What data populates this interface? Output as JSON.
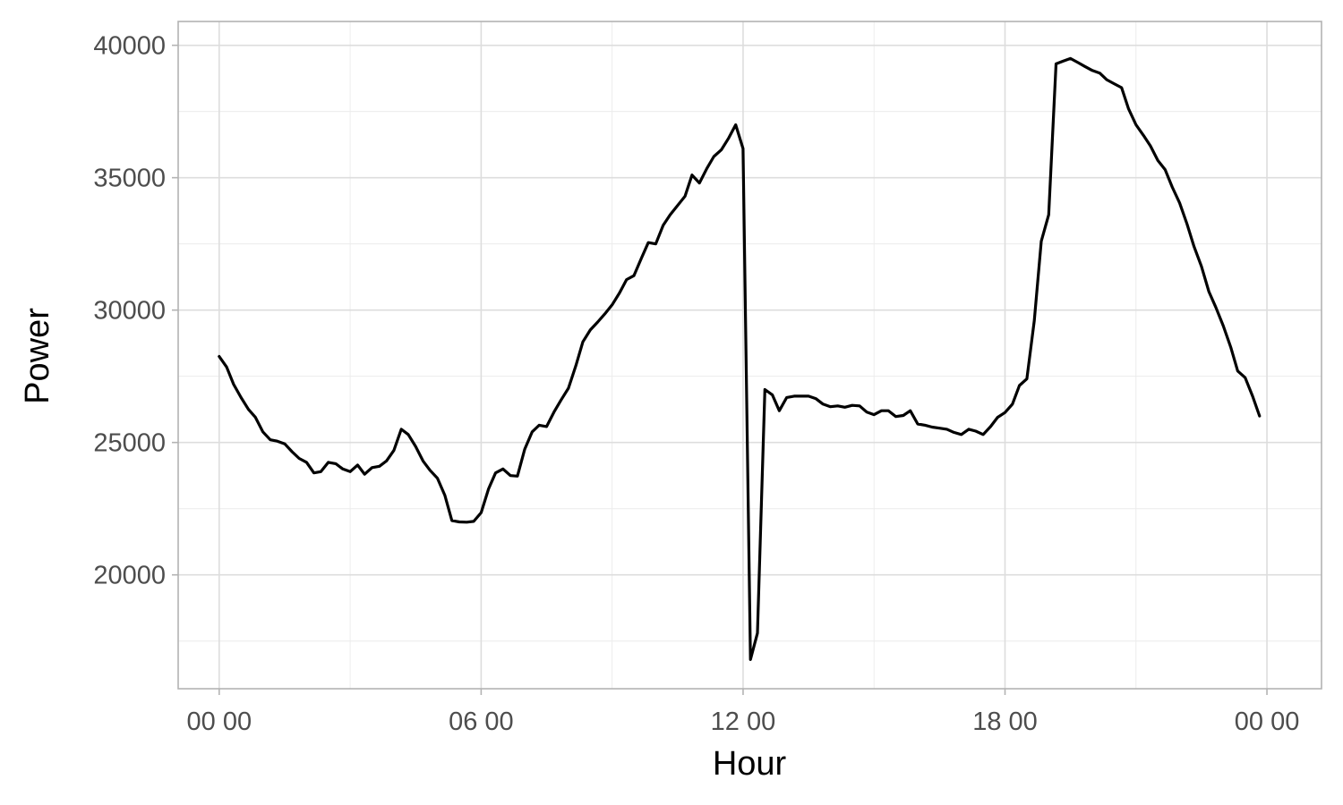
{
  "chart_data": {
    "type": "line",
    "xlabel": "Hour",
    "ylabel": "Power",
    "x_unit": "hours since 00:00",
    "xlim": [
      -0.94,
      25.25
    ],
    "ylim": [
      15700,
      40900
    ],
    "x_ticks": [
      {
        "value": 0,
        "label": "00 00"
      },
      {
        "value": 6,
        "label": "06 00"
      },
      {
        "value": 12,
        "label": "12 00"
      },
      {
        "value": 18,
        "label": "18 00"
      },
      {
        "value": 24,
        "label": "00 00"
      }
    ],
    "x_minor_ticks": [
      3,
      9,
      15,
      21
    ],
    "y_ticks": [
      20000,
      25000,
      30000,
      35000,
      40000
    ],
    "y_minor_ticks": [
      17500,
      22500,
      27500,
      32500,
      37500
    ],
    "grid": true,
    "legend": "none",
    "line_color": "#000000",
    "series": [
      {
        "x": [
          0.0,
          0.17,
          0.33,
          0.5,
          0.67,
          0.83,
          1.0,
          1.17,
          1.33,
          1.5,
          1.67,
          1.83,
          2.0,
          2.17,
          2.33,
          2.5,
          2.67,
          2.83,
          3.0,
          3.17,
          3.33,
          3.5,
          3.67,
          3.83,
          4.0,
          4.17,
          4.33,
          4.5,
          4.67,
          4.83,
          5.0,
          5.17,
          5.33,
          5.5,
          5.67,
          5.83,
          6.0,
          6.17,
          6.33,
          6.5,
          6.67,
          6.83,
          7.0,
          7.17,
          7.33,
          7.5,
          7.67,
          7.83,
          8.0,
          8.17,
          8.33,
          8.5,
          8.67,
          8.83,
          9.0,
          9.17,
          9.33,
          9.5,
          9.67,
          9.83,
          10.0,
          10.17,
          10.33,
          10.5,
          10.67,
          10.83,
          11.0,
          11.17,
          11.33,
          11.5,
          11.67,
          11.83,
          12.0,
          12.17,
          12.33,
          12.5,
          12.67,
          12.83,
          13.0,
          13.17,
          13.33,
          13.5,
          13.67,
          13.83,
          14.0,
          14.17,
          14.33,
          14.5,
          14.67,
          14.83,
          15.0,
          15.17,
          15.33,
          15.5,
          15.67,
          15.83,
          16.0,
          16.17,
          16.33,
          16.5,
          16.67,
          16.83,
          17.0,
          17.17,
          17.33,
          17.5,
          17.67,
          17.83,
          18.0,
          18.17,
          18.33,
          18.5,
          18.67,
          18.83,
          19.0,
          19.17,
          19.33,
          19.5,
          19.67,
          19.83,
          20.0,
          20.17,
          20.33,
          20.5,
          20.67,
          20.83,
          21.0,
          21.17,
          21.33,
          21.5,
          21.67,
          21.83,
          22.0,
          22.17,
          22.33,
          22.5,
          22.67,
          22.83,
          23.0,
          23.17,
          23.33,
          23.5,
          23.67,
          23.83
        ],
        "values": [
          28250,
          27850,
          27200,
          26700,
          26250,
          25950,
          25400,
          25100,
          25050,
          24950,
          24650,
          24400,
          24250,
          23850,
          23900,
          24250,
          24200,
          24000,
          23900,
          24150,
          23800,
          24050,
          24100,
          24300,
          24700,
          25500,
          25300,
          24850,
          24300,
          23950,
          23650,
          23000,
          22050,
          22000,
          21990,
          22020,
          22350,
          23250,
          23850,
          24000,
          23750,
          23730,
          24750,
          25400,
          25650,
          25600,
          26150,
          26600,
          27050,
          27900,
          28800,
          29250,
          29550,
          29850,
          30200,
          30650,
          31150,
          31300,
          31950,
          32550,
          32500,
          33200,
          33600,
          33950,
          34300,
          35100,
          34800,
          35350,
          35800,
          36050,
          36500,
          37000,
          36100,
          16800,
          17800,
          27000,
          26800,
          26200,
          26700,
          26750,
          26750,
          26750,
          26650,
          26450,
          26350,
          26380,
          26330,
          26400,
          26380,
          26150,
          26050,
          26200,
          26200,
          25980,
          26020,
          26200,
          25700,
          25650,
          25580,
          25540,
          25500,
          25380,
          25300,
          25500,
          25430,
          25300,
          25600,
          25950,
          26130,
          26450,
          27150,
          27400,
          29600,
          32600,
          33600,
          39300,
          39400,
          39500,
          39350,
          39200,
          39050,
          38950,
          38700,
          38550,
          38400,
          37600,
          37000,
          36600,
          36200,
          35650,
          35300,
          34650,
          34050,
          33250,
          32400,
          31650,
          30700,
          30100,
          29400,
          28600,
          27700,
          27450,
          26750,
          26000
        ]
      }
    ]
  }
}
